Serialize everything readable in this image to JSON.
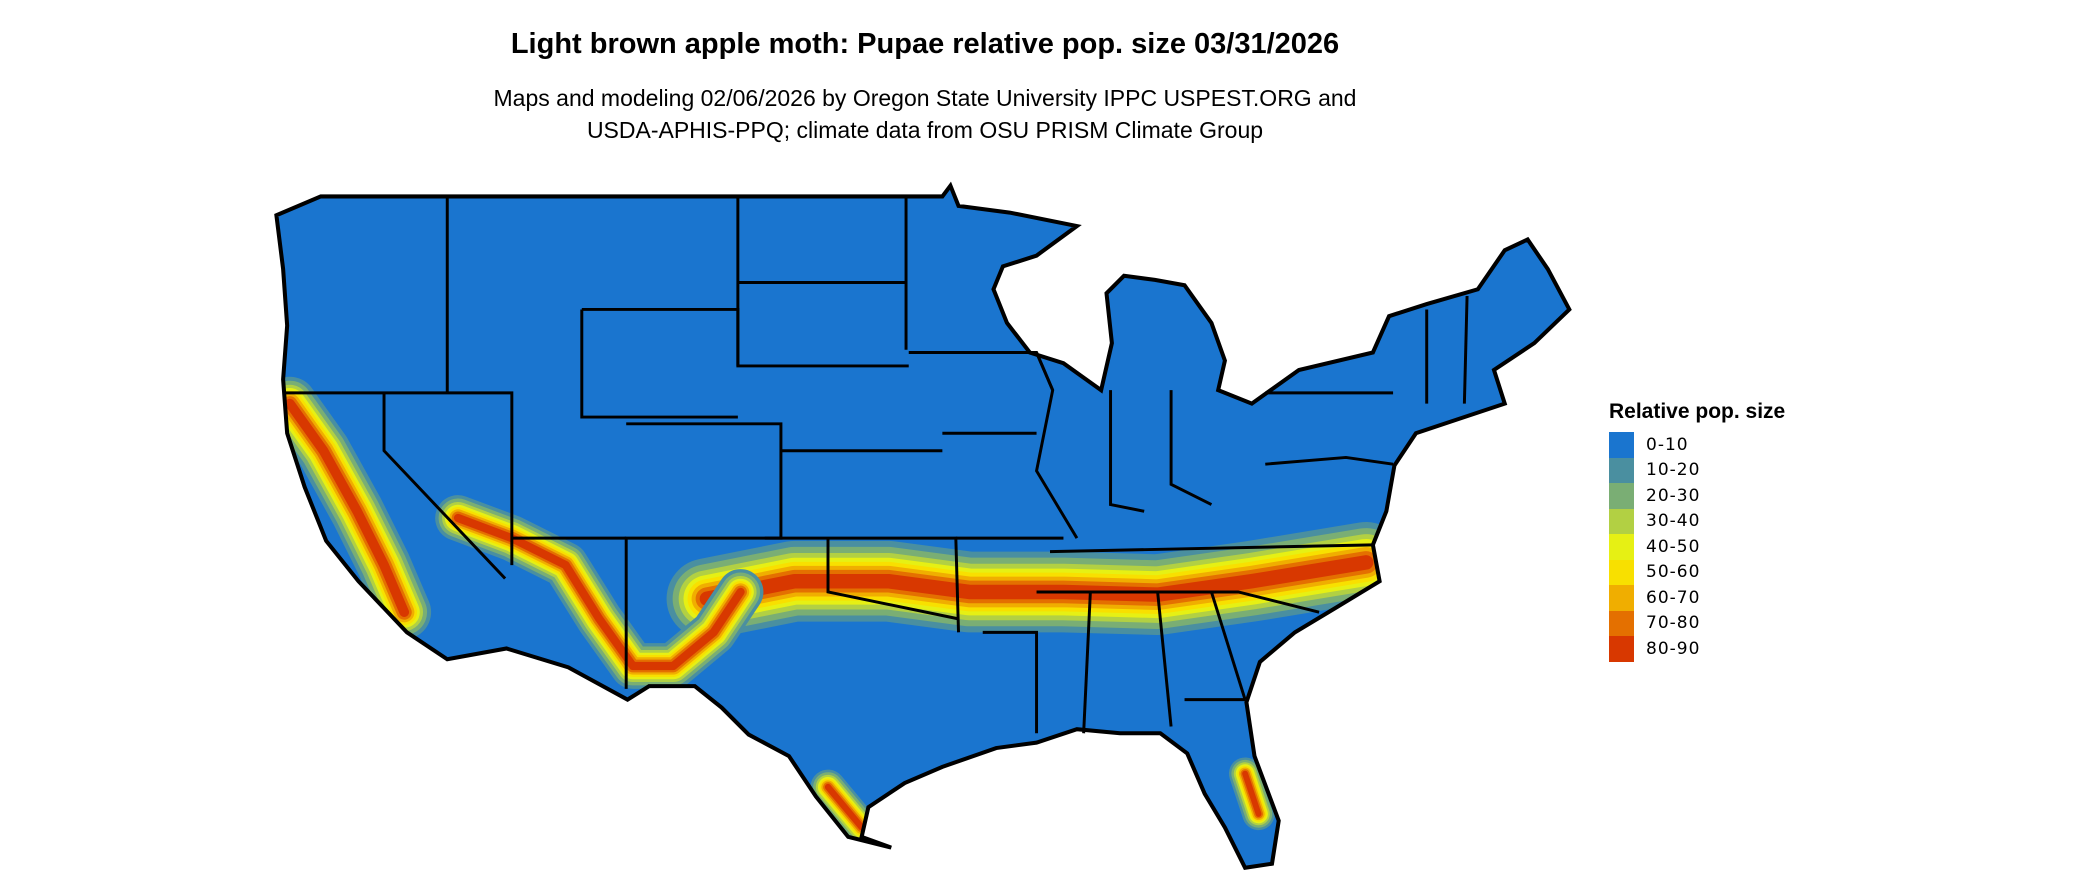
{
  "title": "Light brown apple moth: Pupae relative pop. size 03/31/2026",
  "subtitle_lines": [
    "Maps and modeling 02/06/2026 by Oregon State University IPPC USPEST.ORG and",
    "USDA-APHIS-PPQ; climate data from OSU PRISM Climate Group"
  ],
  "legend": {
    "title": "Relative pop. size",
    "items": [
      {
        "label": "0-10",
        "color": "#1a75cf"
      },
      {
        "label": "10-20",
        "color": "#4a8fa0"
      },
      {
        "label": "20-30",
        "color": "#7aae74"
      },
      {
        "label": "30-40",
        "color": "#b2d043"
      },
      {
        "label": "40-50",
        "color": "#e6f014"
      },
      {
        "label": "50-60",
        "color": "#f8e000"
      },
      {
        "label": "60-70",
        "color": "#f0ae00"
      },
      {
        "label": "70-80",
        "color": "#e47000"
      },
      {
        "label": "80-90",
        "color": "#d83800"
      }
    ]
  },
  "map": {
    "region": "Contiguous United States",
    "base_color": "#1a75cf",
    "border_color": "#000000"
  }
}
